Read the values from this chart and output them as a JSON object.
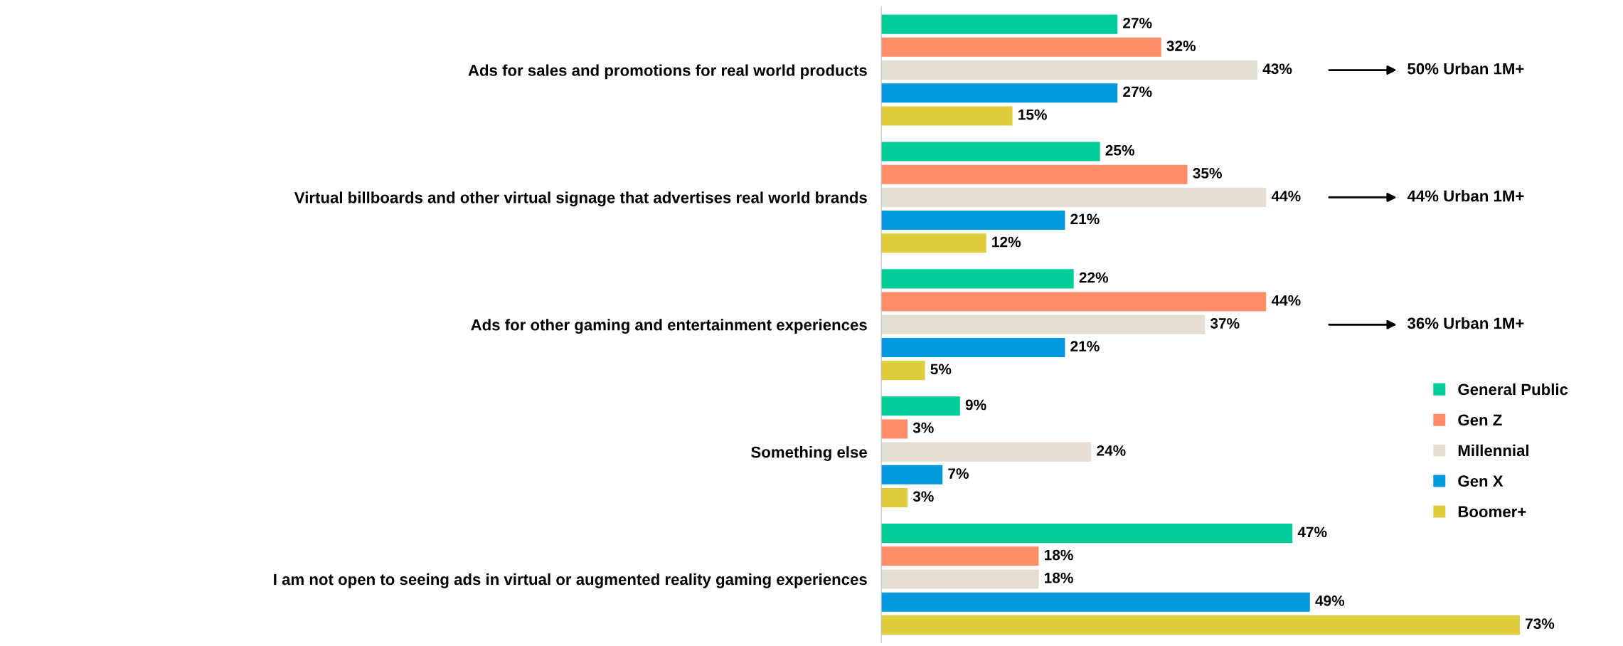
{
  "chart_data": {
    "type": "bar",
    "orientation": "horizontal",
    "grid": false,
    "legend": "bottom right",
    "categories": [
      "Ads for sales and promotions for real world products",
      "Virtual billboards and other virtual signage that advertises real world brands",
      "Ads for other gaming and entertainment experiences",
      "Something else",
      "I am not open to seeing ads in virtual or augmented reality gaming experiences"
    ],
    "series": [
      {
        "name": "General Public",
        "color": "#00cc99",
        "values": [
          27,
          25,
          22,
          9,
          47
        ],
        "value_labels": [
          "27%",
          "25%",
          "22%",
          "9%",
          "47%"
        ]
      },
      {
        "name": "Gen Z",
        "color": "#ff8c69",
        "values": [
          32,
          35,
          44,
          3,
          18
        ],
        "value_labels": [
          "32%",
          "35%",
          "44%",
          "3%",
          "18%"
        ]
      },
      {
        "name": "Millennial",
        "color": "#e3ded0",
        "values": [
          43,
          44,
          37,
          24,
          18
        ],
        "value_labels": [
          "43%",
          "44%",
          "37%",
          "24%",
          "18%"
        ]
      },
      {
        "name": "Gen X",
        "color": "#0099dd",
        "values": [
          27,
          21,
          21,
          7,
          49
        ],
        "value_labels": [
          "27%",
          "21%",
          "21%",
          "7%",
          "49%"
        ]
      },
      {
        "name": "Boomer+",
        "color": "#e0cc3c",
        "values": [
          15,
          12,
          5,
          3,
          73
        ],
        "value_labels": [
          "15%",
          "12%",
          "5%",
          "3%",
          "73%"
        ]
      }
    ],
    "annotations": [
      "50% Urban 1M+",
      "44% Urban 1M+",
      "36% Urban 1M+"
    ]
  }
}
